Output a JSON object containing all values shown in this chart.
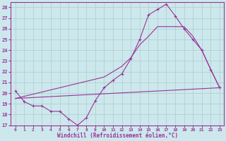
{
  "xlabel": "Windchill (Refroidissement éolien,°C)",
  "xlim": [
    -0.5,
    23.5
  ],
  "ylim": [
    17,
    28.5
  ],
  "yticks": [
    17,
    18,
    19,
    20,
    21,
    22,
    23,
    24,
    25,
    26,
    27,
    28
  ],
  "xticks": [
    0,
    1,
    2,
    3,
    4,
    5,
    6,
    7,
    8,
    9,
    10,
    11,
    12,
    13,
    14,
    15,
    16,
    17,
    18,
    19,
    20,
    21,
    22,
    23
  ],
  "color": "#993399",
  "bg_color": "#cce8ec",
  "grid_color": "#aacccc",
  "line1_x": [
    0,
    1,
    2,
    3,
    4,
    5,
    6,
    7,
    8,
    9,
    10,
    11,
    12,
    13,
    14,
    15,
    16,
    17,
    18,
    19,
    20,
    21,
    22,
    23
  ],
  "line1_y": [
    20.2,
    19.2,
    18.8,
    18.8,
    18.3,
    18.3,
    17.6,
    17.0,
    17.7,
    19.3,
    20.5,
    21.2,
    21.8,
    23.2,
    25.0,
    27.3,
    27.8,
    28.3,
    27.2,
    26.0,
    25.0,
    24.0,
    22.2,
    20.5
  ],
  "line2_x": [
    0,
    23
  ],
  "line2_y": [
    19.5,
    20.5
  ],
  "line3_x": [
    0,
    10,
    11,
    12,
    13,
    14,
    15,
    16,
    17,
    18,
    19,
    20,
    21,
    22,
    23
  ],
  "line3_y": [
    19.5,
    21.5,
    22.0,
    22.5,
    23.3,
    24.5,
    25.3,
    26.2,
    26.2,
    26.2,
    26.2,
    25.3,
    24.0,
    22.2,
    20.5
  ]
}
